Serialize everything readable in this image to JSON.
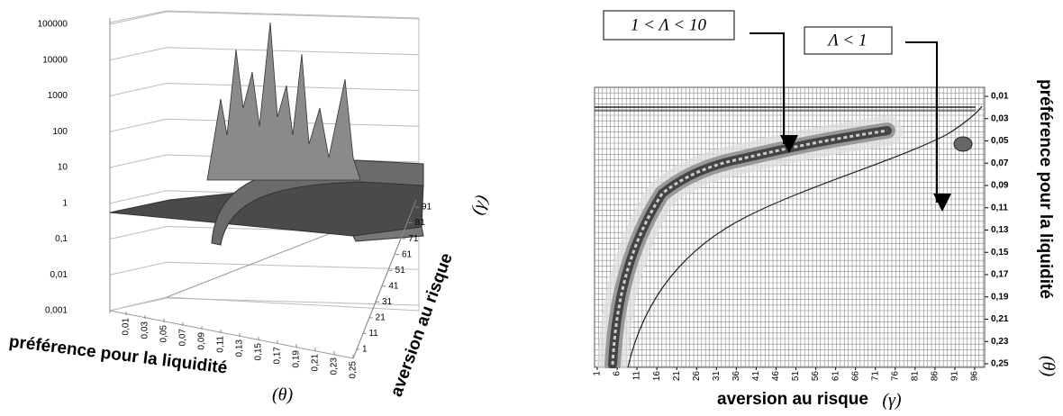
{
  "chart_data": [
    {
      "type": "surface3d",
      "zlog": true,
      "zlim": [
        0.001,
        100000
      ],
      "zticks": [
        {
          "value": 0.001,
          "label": "0,001"
        },
        {
          "value": 0.01,
          "label": "0,01"
        },
        {
          "value": 0.1,
          "label": "0,1"
        },
        1,
        10,
        100,
        1000,
        10000,
        100000
      ],
      "xlabel": "préférence pour la liquidité",
      "xlabel_symbol": "(θ)",
      "xlim": [
        0.01,
        0.25
      ],
      "xticks": [
        {
          "value": 0.01,
          "label": "0,01"
        },
        {
          "value": 0.03,
          "label": "0,03"
        },
        {
          "value": 0.05,
          "label": "0,05"
        },
        {
          "value": 0.07,
          "label": "0,07"
        },
        {
          "value": 0.09,
          "label": "0,09"
        },
        {
          "value": 0.11,
          "label": "0,11"
        },
        {
          "value": 0.13,
          "label": "0,13"
        },
        {
          "value": 0.15,
          "label": "0,15"
        },
        {
          "value": 0.17,
          "label": "0,17"
        },
        {
          "value": 0.19,
          "label": "0,19"
        },
        {
          "value": 0.21,
          "label": "0,21"
        },
        {
          "value": 0.23,
          "label": "0,23"
        },
        {
          "value": 0.25,
          "label": "0,25"
        }
      ],
      "ylabel": "aversion au risque",
      "ylabel_symbol": "(γ)",
      "ylim": [
        1,
        91
      ],
      "yticks": [
        1,
        11,
        21,
        31,
        41,
        51,
        61,
        71,
        81,
        91
      ],
      "grid": true
    },
    {
      "type": "contour",
      "annotations": [
        "1 < Λ < 10",
        "Λ < 1"
      ],
      "xlabel": "aversion au risque",
      "xlabel_symbol": "(γ)",
      "xlim": [
        1,
        96
      ],
      "xticks": [
        1,
        6,
        11,
        16,
        21,
        26,
        31,
        36,
        41,
        46,
        51,
        56,
        61,
        66,
        71,
        76,
        81,
        86,
        91,
        96
      ],
      "ylabel": "préférence pour la liquidité",
      "ylabel_symbol": "(θ)",
      "ylim": [
        0.01,
        0.25
      ],
      "yticks": [
        {
          "value": 0.01,
          "label": "0,01"
        },
        {
          "value": 0.03,
          "label": "0,03"
        },
        {
          "value": 0.05,
          "label": "0,05"
        },
        {
          "value": 0.07,
          "label": "0,07"
        },
        {
          "value": 0.09,
          "label": "0,09"
        },
        {
          "value": 0.11,
          "label": "0,11"
        },
        {
          "value": 0.13,
          "label": "0,13"
        },
        {
          "value": 0.15,
          "label": "0,15"
        },
        {
          "value": 0.17,
          "label": "0,17"
        },
        {
          "value": 0.19,
          "label": "0,19"
        },
        {
          "value": 0.21,
          "label": "0,21"
        },
        {
          "value": 0.23,
          "label": "0,23"
        },
        {
          "value": 0.25,
          "label": "0,25"
        }
      ],
      "grid": true
    }
  ]
}
